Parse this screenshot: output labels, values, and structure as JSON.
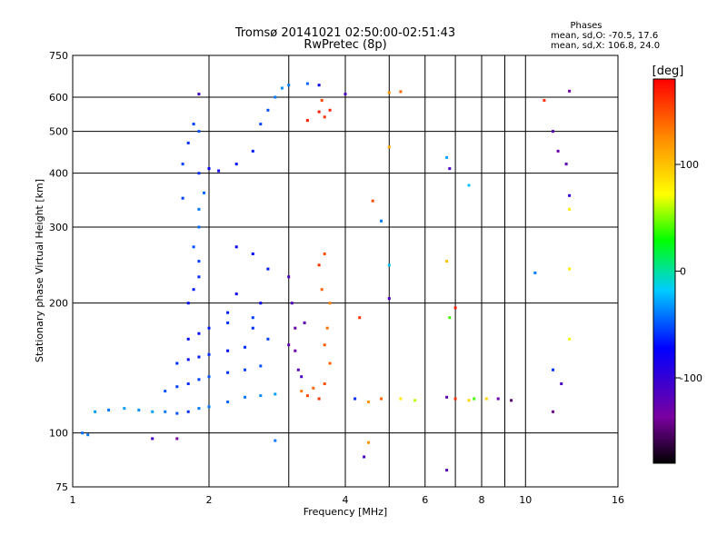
{
  "chart_data": {
    "type": "scatter",
    "title": "Tromsø 20141021 02:50:00-02:51:43",
    "subtitle": "RwPretec (8p)",
    "xlabel": "Frequency [MHz]",
    "ylabel": "Stationary phase Virtual Height [km]",
    "x_scale": "log",
    "y_scale": "log",
    "xlim": [
      1,
      16
    ],
    "ylim": [
      75,
      750
    ],
    "x_ticks": [
      1,
      2,
      4,
      6,
      8,
      10,
      16
    ],
    "x_tick_labels": [
      "1",
      "2",
      "4",
      "6",
      "8",
      "10",
      "16"
    ],
    "x_minor_ticks": [
      3,
      5,
      7,
      9
    ],
    "y_ticks": [
      75,
      100,
      200,
      300,
      400,
      500,
      600,
      750
    ],
    "y_tick_labels": [
      "75",
      "100",
      "200",
      "300",
      "400",
      "500",
      "600",
      "750"
    ],
    "grid": true,
    "phase_box": {
      "title": "Phases",
      "line1": "mean, sd,O: -70.5, 17.6",
      "line2": "mean, sd,X: 106.8, 24.0"
    },
    "colorbar": {
      "label": "[deg]",
      "range": [
        -180,
        180
      ],
      "ticks": [
        100,
        0,
        -100
      ],
      "tick_labels": [
        "100",
        "0",
        "-100"
      ]
    },
    "series": [
      {
        "points": [
          [
            1.05,
            100,
            -45
          ],
          [
            1.08,
            99,
            -40
          ],
          [
            1.12,
            112,
            -30
          ],
          [
            1.2,
            113,
            -40
          ],
          [
            1.3,
            114,
            -30
          ],
          [
            1.4,
            113,
            -35
          ],
          [
            1.5,
            112,
            -30
          ],
          [
            1.6,
            112,
            -40
          ],
          [
            1.7,
            111,
            -50
          ],
          [
            1.8,
            112,
            -60
          ],
          [
            1.9,
            114,
            -40
          ],
          [
            2.0,
            115,
            -40
          ],
          [
            2.2,
            118,
            -45
          ],
          [
            2.4,
            121,
            -40
          ],
          [
            2.6,
            122,
            -35
          ],
          [
            2.8,
            123,
            -30
          ],
          [
            1.6,
            125,
            -50
          ],
          [
            1.7,
            128,
            -55
          ],
          [
            1.8,
            130,
            -60
          ],
          [
            1.9,
            133,
            -55
          ],
          [
            2.0,
            135,
            -50
          ],
          [
            2.2,
            138,
            -60
          ],
          [
            2.4,
            140,
            -55
          ],
          [
            2.6,
            143,
            -50
          ],
          [
            1.7,
            145,
            -60
          ],
          [
            1.8,
            148,
            -70
          ],
          [
            1.9,
            150,
            -65
          ],
          [
            2.0,
            152,
            -60
          ],
          [
            2.2,
            155,
            -70
          ],
          [
            2.4,
            158,
            -60
          ],
          [
            1.8,
            165,
            -70
          ],
          [
            1.9,
            170,
            -70
          ],
          [
            2.0,
            175,
            -65
          ],
          [
            2.2,
            180,
            -60
          ],
          [
            2.5,
            185,
            -55
          ],
          [
            1.8,
            200,
            -70
          ],
          [
            1.85,
            215,
            -65
          ],
          [
            1.9,
            230,
            -60
          ],
          [
            1.9,
            250,
            -55
          ],
          [
            1.85,
            270,
            -50
          ],
          [
            1.9,
            300,
            -45
          ],
          [
            1.9,
            330,
            -40
          ],
          [
            1.95,
            360,
            -45
          ],
          [
            1.9,
            400,
            -60
          ],
          [
            2.0,
            410,
            -75
          ],
          [
            2.1,
            405,
            -80
          ],
          [
            2.3,
            420,
            -70
          ],
          [
            2.5,
            450,
            -65
          ],
          [
            2.6,
            520,
            -55
          ],
          [
            2.7,
            560,
            -50
          ],
          [
            2.8,
            600,
            -40
          ],
          [
            2.9,
            630,
            -35
          ],
          [
            3.0,
            640,
            -40
          ],
          [
            3.3,
            645,
            -45
          ],
          [
            3.5,
            640,
            -75
          ],
          [
            1.8,
            470,
            -60
          ],
          [
            1.85,
            520,
            -55
          ],
          [
            1.9,
            500,
            -50
          ],
          [
            1.75,
            420,
            -55
          ],
          [
            1.75,
            350,
            -55
          ],
          [
            2.3,
            270,
            -75
          ],
          [
            2.5,
            260,
            -70
          ],
          [
            2.7,
            240,
            -65
          ],
          [
            2.3,
            210,
            -80
          ],
          [
            2.6,
            200,
            -75
          ],
          [
            2.2,
            190,
            -65
          ],
          [
            2.5,
            175,
            -60
          ],
          [
            2.7,
            165,
            -55
          ],
          [
            3.0,
            230,
            -110
          ],
          [
            3.05,
            200,
            -115
          ],
          [
            3.1,
            175,
            -125
          ],
          [
            3.1,
            155,
            -130
          ],
          [
            3.15,
            140,
            -120
          ],
          [
            3.2,
            135,
            -110
          ],
          [
            3.25,
            180,
            -120
          ],
          [
            3.0,
            160,
            -125
          ],
          [
            3.5,
            120,
            160
          ],
          [
            3.6,
            130,
            150
          ],
          [
            3.7,
            145,
            140
          ],
          [
            3.6,
            160,
            145
          ],
          [
            3.65,
            175,
            135
          ],
          [
            3.7,
            200,
            130
          ],
          [
            3.55,
            215,
            140
          ],
          [
            3.6,
            260,
            150
          ],
          [
            3.5,
            245,
            160
          ],
          [
            3.2,
            125,
            130
          ],
          [
            3.4,
            127,
            140
          ],
          [
            3.3,
            122,
            150
          ],
          [
            3.5,
            555,
            170
          ],
          [
            3.6,
            540,
            160
          ],
          [
            3.7,
            560,
            165
          ],
          [
            3.3,
            530,
            170
          ],
          [
            3.55,
            590,
            150
          ],
          [
            4.2,
            120,
            -60
          ],
          [
            4.5,
            118,
            120
          ],
          [
            4.8,
            120,
            140
          ],
          [
            5.3,
            120,
            80
          ],
          [
            5.7,
            119,
            60
          ],
          [
            6.7,
            121,
            -120
          ],
          [
            7.0,
            120,
            160
          ],
          [
            7.5,
            119,
            90
          ],
          [
            7.7,
            120,
            40
          ],
          [
            8.2,
            120,
            90
          ],
          [
            8.7,
            120,
            -130
          ],
          [
            9.3,
            119,
            -150
          ],
          [
            4.0,
            610,
            -110
          ],
          [
            5.0,
            615,
            120
          ],
          [
            5.3,
            618,
            140
          ],
          [
            5.0,
            460,
            110
          ],
          [
            4.6,
            345,
            150
          ],
          [
            4.8,
            310,
            -40
          ],
          [
            6.7,
            435,
            -30
          ],
          [
            6.8,
            410,
            -110
          ],
          [
            7.5,
            375,
            -20
          ],
          [
            6.7,
            250,
            100
          ],
          [
            7.0,
            195,
            170
          ],
          [
            5.0,
            245,
            -20
          ],
          [
            5.0,
            205,
            -110
          ],
          [
            4.3,
            185,
            160
          ],
          [
            6.8,
            185,
            40
          ],
          [
            4.5,
            95,
            120
          ],
          [
            4.4,
            88,
            -110
          ],
          [
            6.7,
            82,
            -120
          ],
          [
            1.5,
            97,
            -110
          ],
          [
            1.7,
            97,
            -140
          ],
          [
            2.8,
            96,
            -40
          ],
          [
            1.9,
            610,
            -110
          ],
          [
            11.0,
            590,
            160
          ],
          [
            12.5,
            620,
            -130
          ],
          [
            11.5,
            500,
            -120
          ],
          [
            11.8,
            450,
            -130
          ],
          [
            12.3,
            420,
            -120
          ],
          [
            12.5,
            355,
            -100
          ],
          [
            12.5,
            330,
            80
          ],
          [
            10.5,
            235,
            -40
          ],
          [
            12.5,
            240,
            80
          ],
          [
            12.5,
            165,
            70
          ],
          [
            11.5,
            140,
            -60
          ],
          [
            12.0,
            130,
            -110
          ],
          [
            11.5,
            112,
            -140
          ]
        ]
      }
    ]
  }
}
